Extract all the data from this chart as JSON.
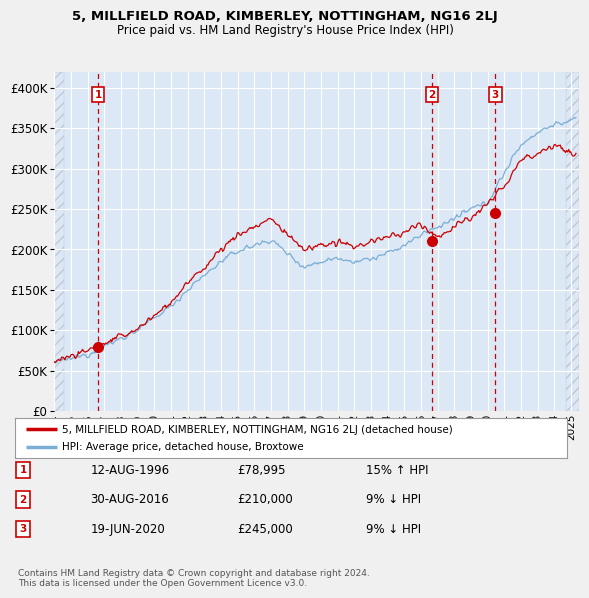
{
  "title": "5, MILLFIELD ROAD, KIMBERLEY, NOTTINGHAM, NG16 2LJ",
  "subtitle": "Price paid vs. HM Land Registry's House Price Index (HPI)",
  "legend_label_red": "5, MILLFIELD ROAD, KIMBERLEY, NOTTINGHAM, NG16 2LJ (detached house)",
  "legend_label_blue": "HPI: Average price, detached house, Broxtowe",
  "footer": "Contains HM Land Registry data © Crown copyright and database right 2024.\nThis data is licensed under the Open Government Licence v3.0.",
  "xlim": [
    1994.0,
    2025.5
  ],
  "ylim": [
    0,
    420000
  ],
  "yticks": [
    0,
    50000,
    100000,
    150000,
    200000,
    250000,
    300000,
    350000,
    400000
  ],
  "ytick_labels": [
    "£0",
    "£50K",
    "£100K",
    "£150K",
    "£200K",
    "£250K",
    "£300K",
    "£350K",
    "£400K"
  ],
  "fig_bg_color": "#f0f0f0",
  "plot_bg_color": "#dce8f5",
  "grid_color": "#ffffff",
  "sale_color": "#cc0000",
  "hpi_color": "#7aaed6",
  "vline_color": "#cc0000",
  "transactions": [
    {
      "num": 1,
      "date_str": "12-AUG-1996",
      "year": 1996.62,
      "price": 78995,
      "pct": "15%",
      "dir": "↑"
    },
    {
      "num": 2,
      "date_str": "30-AUG-2016",
      "year": 2016.66,
      "price": 210000,
      "pct": "9%",
      "dir": "↓"
    },
    {
      "num": 3,
      "date_str": "19-JUN-2020",
      "year": 2020.46,
      "price": 245000,
      "pct": "9%",
      "dir": "↓"
    }
  ],
  "xticks": [
    1994,
    1995,
    1996,
    1997,
    1998,
    1999,
    2000,
    2001,
    2002,
    2003,
    2004,
    2005,
    2006,
    2007,
    2008,
    2009,
    2010,
    2011,
    2012,
    2013,
    2014,
    2015,
    2016,
    2017,
    2018,
    2019,
    2020,
    2021,
    2022,
    2023,
    2024,
    2025
  ]
}
